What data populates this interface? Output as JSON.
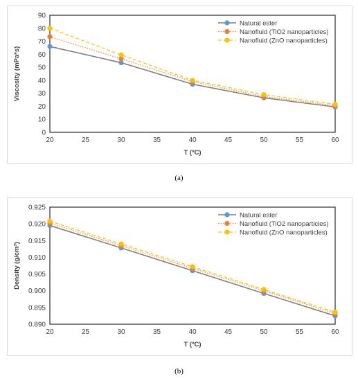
{
  "captions": [
    "(a)",
    "(b)"
  ],
  "colors": {
    "natural_ester": "#5b9bd5",
    "line_natural": "#7f7f7f",
    "tio2": "#ed7d31",
    "zno": "#ffc000",
    "axis": "#000000",
    "frame": "#d9d9d9"
  },
  "chart_data": [
    {
      "type": "line",
      "title": "",
      "xlabel": "T (ºC)",
      "ylabel": "Viscosity (mPa*s)",
      "xlim": [
        20,
        60
      ],
      "ylim": [
        0,
        90
      ],
      "xticks": [
        "20",
        "25",
        "30",
        "35",
        "40",
        "45",
        "50",
        "55",
        "60"
      ],
      "yticks": [
        "0",
        "10",
        "20",
        "30",
        "40",
        "50",
        "60",
        "70",
        "80",
        "90"
      ],
      "legend_position": "top-right",
      "x": [
        20,
        30,
        40,
        50,
        60
      ],
      "series": [
        {
          "name": "Natural ester",
          "values": [
            66,
            53.5,
            37,
            26.5,
            19.5
          ]
        },
        {
          "name": "Nanofluid (TiO2 nanoparticles)",
          "values": [
            73.5,
            56.5,
            39,
            27.5,
            20.5
          ]
        },
        {
          "name": "Nanofluid (ZnO nanoparticles)",
          "values": [
            80,
            59.5,
            40,
            29,
            21.5
          ]
        }
      ]
    },
    {
      "type": "line",
      "title": "",
      "xlabel": "T (ºC)",
      "ylabel": "Density  (g/cm³)",
      "xlim": [
        20,
        60
      ],
      "ylim": [
        0.89,
        0.925
      ],
      "xticks": [
        "20",
        "25",
        "30",
        "35",
        "40",
        "45",
        "50",
        "55",
        "60"
      ],
      "yticks": [
        "0.890",
        "0.895",
        "0.900",
        "0.905",
        "0.910",
        "0.915",
        "0.920",
        "0.925"
      ],
      "legend_position": "top-right",
      "x": [
        20,
        30,
        40,
        50,
        60
      ],
      "series": [
        {
          "name": "Natural ester",
          "values": [
            0.9195,
            0.9128,
            0.906,
            0.8992,
            0.8925
          ]
        },
        {
          "name": "Nanofluid (TiO2 nanoparticles)",
          "values": [
            0.9202,
            0.9135,
            0.9067,
            0.9,
            0.8932
          ]
        },
        {
          "name": "Nanofluid (ZnO nanoparticles)",
          "values": [
            0.9208,
            0.914,
            0.9072,
            0.9004,
            0.8936
          ]
        }
      ]
    }
  ]
}
